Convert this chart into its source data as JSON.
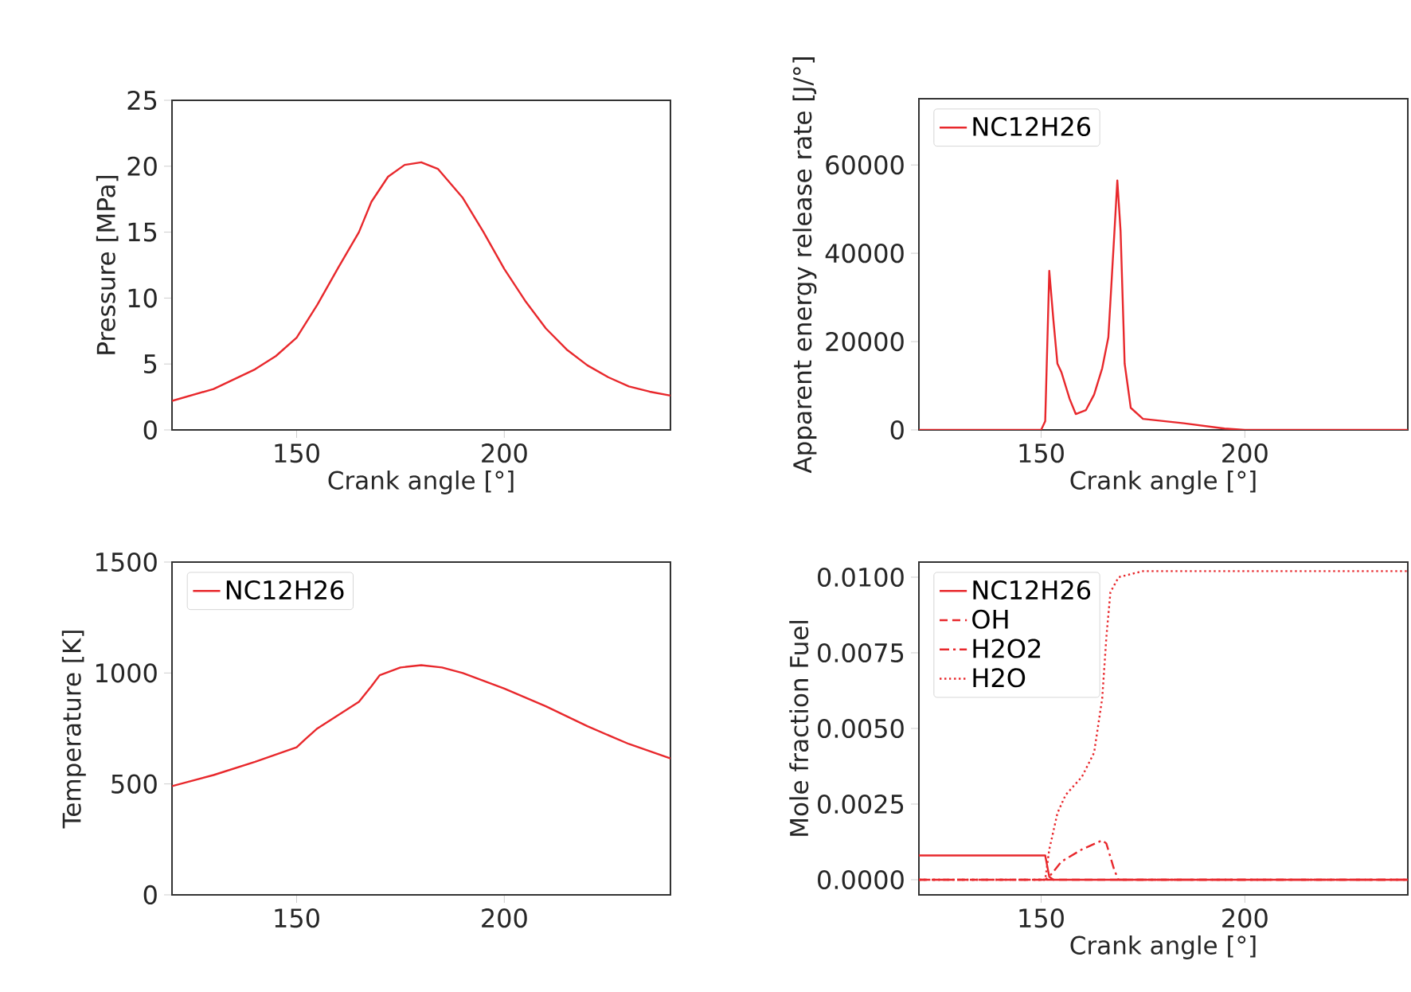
{
  "chart_data": [
    {
      "type": "line",
      "xlabel": "Crank angle [°]",
      "ylabel": "Pressure [MPa]",
      "xlim": [
        120,
        240
      ],
      "ylim": [
        0,
        25
      ],
      "xticks": [
        150,
        200
      ],
      "yticks": [
        0,
        5,
        10,
        15,
        20,
        25
      ],
      "legend": false,
      "series": [
        {
          "color": "#e8282c",
          "line_style": "solid",
          "x": [
            120,
            130,
            140,
            145,
            150,
            155,
            160,
            165,
            168,
            172,
            176,
            180,
            184,
            190,
            195,
            200,
            205,
            210,
            215,
            220,
            225,
            230,
            235,
            240
          ],
          "values": [
            2.2,
            3.1,
            4.6,
            5.6,
            7.0,
            9.5,
            12.3,
            15.0,
            17.3,
            19.2,
            20.1,
            20.3,
            19.8,
            17.6,
            15.0,
            12.2,
            9.8,
            7.7,
            6.1,
            4.9,
            4.0,
            3.3,
            2.9,
            2.6
          ]
        }
      ]
    },
    {
      "type": "line",
      "xlabel": "Crank angle [°]",
      "ylabel": "Apparent energy release rate [J/°]",
      "xlim": [
        120,
        240
      ],
      "ylim": [
        0,
        75000
      ],
      "xticks": [
        150,
        200
      ],
      "yticks": [
        0,
        20000,
        40000,
        60000
      ],
      "legend": "top left",
      "series": [
        {
          "name": "NC12H26",
          "color": "#e8282c",
          "line_style": "solid",
          "x": [
            120,
            150,
            151,
            152,
            153,
            154,
            155,
            157,
            158.5,
            161,
            163,
            165,
            166.5,
            168,
            168.7,
            169.5,
            170.5,
            172,
            175,
            185,
            195,
            200,
            240
          ],
          "values": [
            0,
            0,
            2000,
            36000,
            25000,
            15000,
            13000,
            7000,
            3600,
            4500,
            8000,
            14000,
            21000,
            45000,
            56500,
            45000,
            15000,
            5000,
            2500,
            1500,
            300,
            0,
            0
          ]
        }
      ]
    },
    {
      "type": "line",
      "ylabel": "Temperature [K]",
      "xlim": [
        120,
        240
      ],
      "ylim": [
        0,
        1500
      ],
      "xticks": [
        150,
        200
      ],
      "yticks": [
        0,
        500,
        1000,
        1500
      ],
      "legend": "top left",
      "series": [
        {
          "name": "NC12H26",
          "color": "#e8282c",
          "line_style": "solid",
          "x": [
            120,
            130,
            140,
            150,
            152,
            155,
            160,
            165,
            168,
            170,
            175,
            180,
            185,
            190,
            200,
            210,
            220,
            230,
            240
          ],
          "values": [
            490,
            540,
            600,
            665,
            700,
            750,
            810,
            870,
            940,
            990,
            1025,
            1035,
            1025,
            1000,
            930,
            850,
            760,
            680,
            615
          ]
        }
      ]
    },
    {
      "type": "line",
      "xlabel": "Crank angle [°]",
      "ylabel": "Mole fraction Fuel",
      "xlim": [
        120,
        240
      ],
      "ylim": [
        -0.0005,
        0.0105
      ],
      "xticks": [
        150,
        200
      ],
      "yticks": [
        {
          "value": 0,
          "label": "0.0000"
        },
        {
          "value": 0.0025,
          "label": "0.0025"
        },
        {
          "value": 0.005,
          "label": "0.0050"
        },
        {
          "value": 0.0075,
          "label": "0.0075"
        },
        {
          "value": 0.01,
          "label": "0.0100"
        }
      ],
      "legend": "top left",
      "series": [
        {
          "name": "NC12H26",
          "color": "#e8282c",
          "line_style": "solid",
          "x": [
            120,
            151,
            152,
            153,
            240
          ],
          "values": [
            0.0008,
            0.0008,
            0.0001,
            0,
            0
          ]
        },
        {
          "name": "OH",
          "color": "#e8282c",
          "line_style": "dashed",
          "x": [
            120,
            152,
            170,
            240
          ],
          "values": [
            0,
            0,
            0,
            0
          ]
        },
        {
          "name": "H2O2",
          "color": "#e8282c",
          "line_style": "dashdot",
          "x": [
            120,
            151,
            152,
            155,
            160,
            165,
            166,
            168,
            169,
            240
          ],
          "values": [
            0,
            0,
            0.0001,
            0.0006,
            0.001,
            0.0013,
            0.0012,
            0.0003,
            0,
            0
          ]
        },
        {
          "name": "H2O",
          "color": "#e8282c",
          "line_style": "dotted",
          "x": [
            120,
            151,
            152,
            154,
            156,
            160,
            163,
            165,
            166,
            167,
            169,
            175,
            240
          ],
          "values": [
            0,
            0,
            0.001,
            0.0022,
            0.0028,
            0.0034,
            0.0042,
            0.006,
            0.008,
            0.0095,
            0.01,
            0.0102,
            0.0102
          ]
        }
      ]
    }
  ]
}
